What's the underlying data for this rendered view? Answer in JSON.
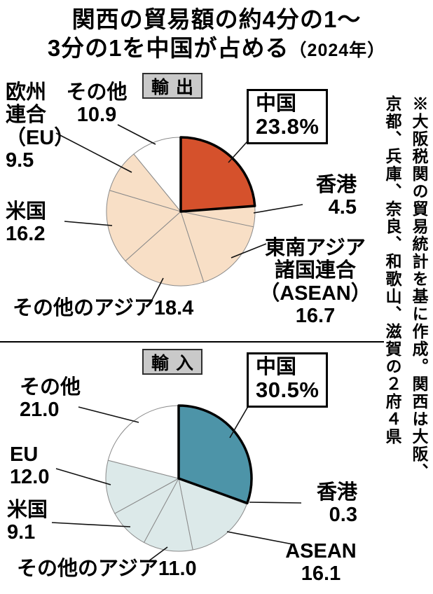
{
  "title": {
    "line1": "関西の貿易額の約4分の1〜",
    "line2": "3分の1を中国が占める",
    "year_suffix": "（2024年）"
  },
  "source_note": "※大阪税関の貿易統計を基に作成。関西は大阪、\n京都、兵庫、奈良、和歌山、滋賀の２府４県",
  "colors": {
    "export_highlight": "#d5512c",
    "export_base": "#f8dfc6",
    "import_highlight": "#4d94a8",
    "import_base": "#dce9e9",
    "other_slice": "#ffffff"
  },
  "chart_data": [
    {
      "type": "pie",
      "title": "輸出",
      "unit": "%",
      "slice_stroke": "#8a8a8a",
      "slices": [
        {
          "label": "中国",
          "value": 23.8,
          "color": "#d5512c",
          "highlight": true
        },
        {
          "label": "香港",
          "value": 4.5,
          "color": "#f8dfc6"
        },
        {
          "label": "東南アジア諸国連合（ASEAN）",
          "value": 16.7,
          "color": "#f8dfc6"
        },
        {
          "label": "その他のアジア",
          "value": 18.4,
          "color": "#f8dfc6"
        },
        {
          "label": "米国",
          "value": 16.2,
          "color": "#f8dfc6"
        },
        {
          "label": "欧州連合（EU）",
          "value": 9.5,
          "color": "#f8dfc6"
        },
        {
          "label": "その他",
          "value": 10.9,
          "color": "#ffffff"
        }
      ],
      "highlight_box": {
        "label": "中国",
        "value": "23.8%"
      },
      "labels": {
        "eu": "欧州\n連合\n（EU）\n9.5",
        "other": "その他\n10.9",
        "hongkong": "香港\n4.5",
        "asean": "東南アジア\n諸国連合\n（ASEAN）\n16.7",
        "other_asia": "その他のアジア18.4",
        "us": "米国\n16.2"
      }
    },
    {
      "type": "pie",
      "title": "輸入",
      "unit": "%",
      "slice_stroke": "#8a8a8a",
      "slices": [
        {
          "label": "中国",
          "value": 30.5,
          "color": "#4d94a8",
          "highlight": true
        },
        {
          "label": "香港",
          "value": 0.3,
          "color": "#dce9e9"
        },
        {
          "label": "ASEAN",
          "value": 16.1,
          "color": "#dce9e9"
        },
        {
          "label": "その他のアジア",
          "value": 11.0,
          "color": "#dce9e9"
        },
        {
          "label": "米国",
          "value": 9.1,
          "color": "#dce9e9"
        },
        {
          "label": "EU",
          "value": 12.0,
          "color": "#dce9e9"
        },
        {
          "label": "その他",
          "value": 21.0,
          "color": "#ffffff"
        }
      ],
      "highlight_box": {
        "label": "中国",
        "value": "30.5%"
      },
      "labels": {
        "other": "その他\n21.0",
        "eu": "EU\n12.0",
        "us": "米国\n9.1",
        "other_asia": "その他のアジア11.0",
        "hongkong": "香港\n0.3",
        "asean": "ASEAN\n16.1"
      }
    }
  ]
}
